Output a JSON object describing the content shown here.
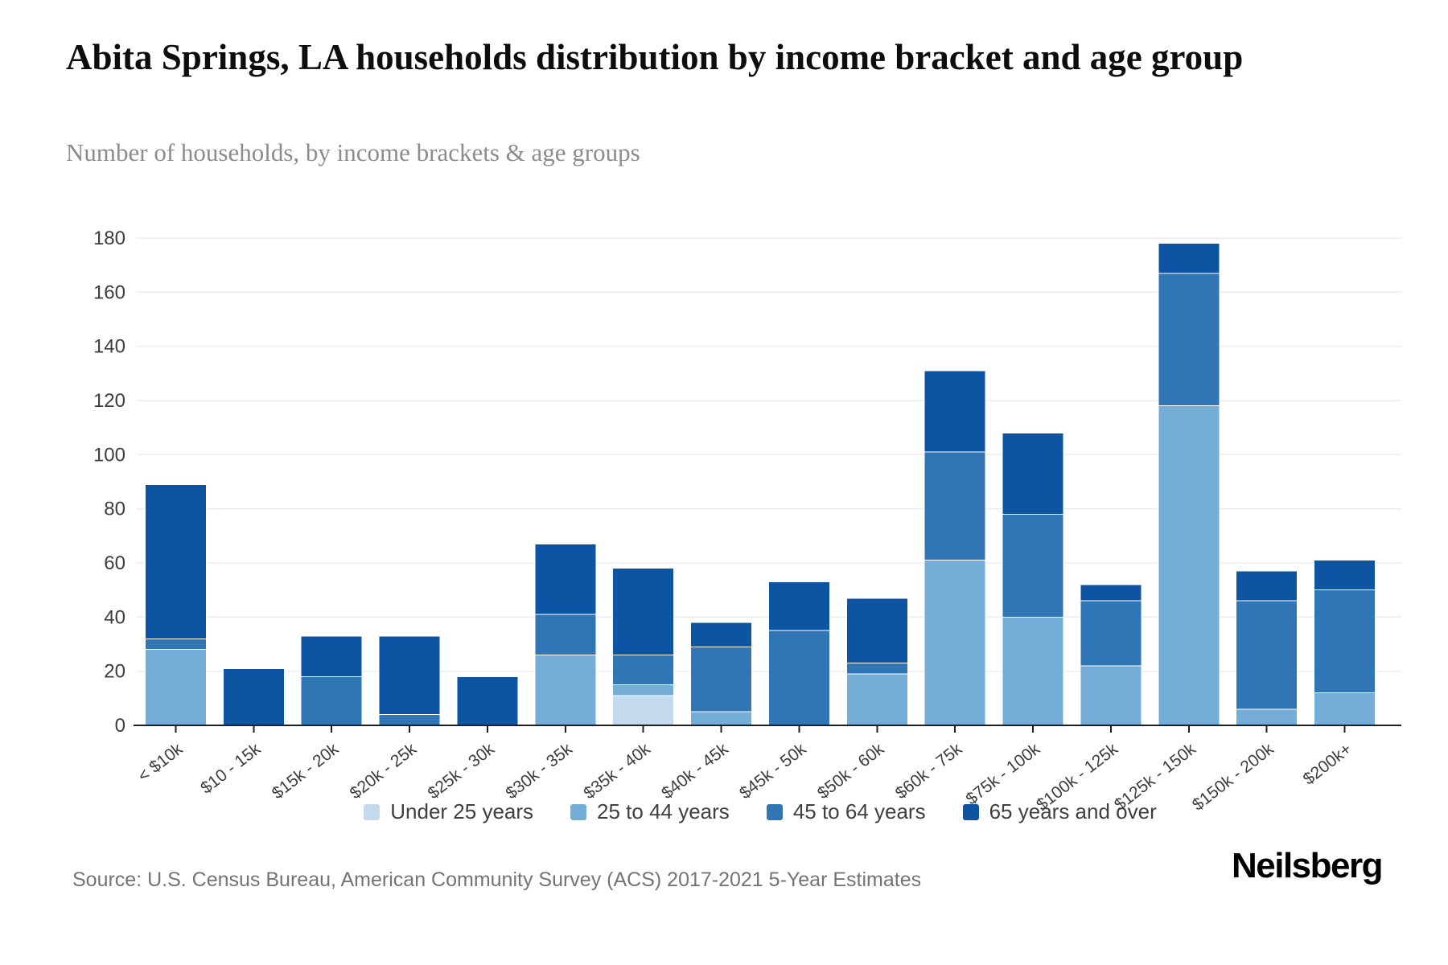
{
  "header": {
    "title": "Abita Springs, LA households distribution by income bracket and age group",
    "subtitle": "Number of households, by income brackets & age groups"
  },
  "chart_data": {
    "type": "bar",
    "stacked": true,
    "title": "Abita Springs, LA households distribution by income bracket and age group",
    "subtitle": "Number of households, by income brackets & age groups",
    "xlabel": "",
    "ylabel": "Number of households",
    "ylim": [
      0,
      180
    ],
    "ytick_step": 20,
    "grid": true,
    "legend_position": "bottom",
    "categories": [
      "< $10k",
      "$10 - 15k",
      "$15k - 20k",
      "$20k - 25k",
      "$25k - 30k",
      "$30k - 35k",
      "$35k - 40k",
      "$40k - 45k",
      "$45k - 50k",
      "$50k - 60k",
      "$60k - 75k",
      "$75k - 100k",
      "$100k - 125k",
      "$125k - 150k",
      "$150k - 200k",
      "$200k+"
    ],
    "series": [
      {
        "name": "Under 25 years",
        "color": "#c4daec",
        "values": [
          0,
          0,
          0,
          0,
          0,
          0,
          11,
          0,
          0,
          0,
          0,
          0,
          0,
          0,
          0,
          0
        ]
      },
      {
        "name": "25 to 44 years",
        "color": "#74add8",
        "values": [
          28,
          0,
          0,
          0,
          0,
          26,
          4,
          5,
          0,
          19,
          61,
          40,
          22,
          118,
          6,
          12
        ]
      },
      {
        "name": "45 to 64 years",
        "color": "#3076b5",
        "values": [
          4,
          0,
          18,
          4,
          0,
          15,
          11,
          24,
          35,
          4,
          40,
          38,
          24,
          49,
          40,
          38
        ]
      },
      {
        "name": "65 years and over",
        "color": "#0d55a2",
        "values": [
          57,
          21,
          15,
          29,
          18,
          26,
          32,
          9,
          18,
          24,
          30,
          30,
          6,
          11,
          11,
          11
        ]
      }
    ],
    "totals": [
      89,
      21,
      33,
      33,
      18,
      67,
      58,
      38,
      53,
      47,
      131,
      108,
      52,
      178,
      57,
      61
    ],
    "axis_colors": {
      "gridline": "#ededed",
      "axis_line": "#1f1f1f",
      "tick_label": "#3d3d3d"
    }
  },
  "footer": {
    "source": "Source: U.S. Census Bureau, American Community Survey (ACS) 2017-2021 5-Year Estimates",
    "brand": "Neilsberg"
  }
}
